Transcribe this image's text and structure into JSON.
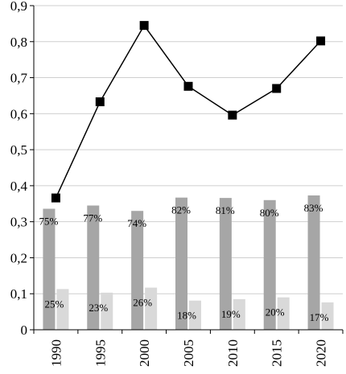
{
  "chart_data": {
    "type": "bar",
    "categories": [
      "1990",
      "1995",
      "2000",
      "2005",
      "2010",
      "2015",
      "2020"
    ],
    "ylim": [
      0,
      0.9
    ],
    "yticks": [
      "0",
      "0,1",
      "0,2",
      "0,3",
      "0,4",
      "0,5",
      "0,6",
      "0,7",
      "0,8",
      "0,9"
    ],
    "grid": true,
    "series": [
      {
        "kind": "bar",
        "color": "#a6a6a6",
        "values": [
          0.336,
          0.345,
          0.33,
          0.367,
          0.366,
          0.36,
          0.373
        ],
        "labels": [
          "75%",
          "77%",
          "74%",
          "82%",
          "81%",
          "80%",
          "83%"
        ]
      },
      {
        "kind": "bar",
        "color": "#d9d9d9",
        "values": [
          0.113,
          0.103,
          0.117,
          0.081,
          0.085,
          0.09,
          0.076
        ],
        "labels": [
          "25%",
          "23%",
          "26%",
          "18%",
          "19%",
          "20%",
          "17%"
        ]
      },
      {
        "kind": "line",
        "color": "#000000",
        "marker": "square",
        "values": [
          0.366,
          0.633,
          0.845,
          0.676,
          0.596,
          0.67,
          0.802
        ]
      }
    ]
  }
}
